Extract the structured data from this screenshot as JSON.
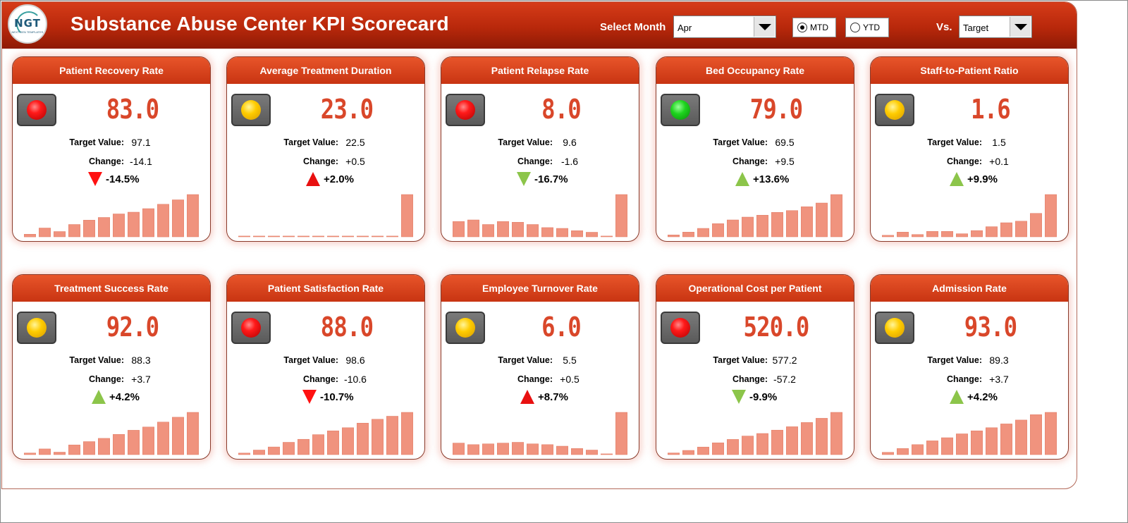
{
  "header": {
    "title": "Substance Abuse Center KPI Scorecard",
    "logo_text": "NGT",
    "logo_sub": "NEXT GEN TEMPLATES",
    "select_month_label": "Select Month",
    "month_value": "Apr",
    "mtd_label": "MTD",
    "ytd_label": "YTD",
    "period_selected": "MTD",
    "vs_label": "Vs.",
    "vs_value": "Target"
  },
  "labels": {
    "target": "Target Value:",
    "change": "Change:"
  },
  "colors": {
    "bar": "#f0937e",
    "bar_stroke": "#e07a63",
    "up_good": "#8cc54a",
    "down_bad": "#ff1111",
    "up_bad": "#e81010",
    "down_good": "#8cc54a"
  },
  "cards": [
    {
      "title": "Patient Recovery Rate",
      "value": "83.0",
      "light": "red",
      "target": "97.1",
      "change": "-14.1",
      "pct": "-14.5%",
      "dir": "down",
      "tri_color": "#ff1111",
      "trend": [
        3,
        10,
        6,
        14,
        19,
        22,
        26,
        28,
        32,
        37,
        42,
        48
      ]
    },
    {
      "title": "Average Treatment Duration",
      "value": "23.0",
      "light": "yellow",
      "target": "22.5",
      "change": "+0.5",
      "pct": "+2.0%",
      "dir": "up",
      "tri_color": "#e81010",
      "trend": [
        1,
        1,
        1,
        1,
        1,
        1,
        1,
        1,
        1,
        1,
        1,
        55
      ]
    },
    {
      "title": "Patient Relapse Rate",
      "value": "8.0",
      "light": "red",
      "target": "9.6",
      "change": "-1.6",
      "pct": "-16.7%",
      "dir": "down",
      "tri_color": "#8cc54a",
      "trend": [
        20,
        22,
        16,
        20,
        19,
        16,
        12,
        11,
        8,
        6,
        1,
        55
      ]
    },
    {
      "title": "Bed Occupancy Rate",
      "value": "79.0",
      "light": "green",
      "target": "69.5",
      "change": "+9.5",
      "pct": "+13.6%",
      "dir": "up",
      "tri_color": "#8cc54a",
      "trend": [
        2,
        5,
        9,
        14,
        18,
        21,
        23,
        26,
        28,
        32,
        36,
        45
      ]
    },
    {
      "title": "Staff-to-Patient Ratio",
      "value": "1.6",
      "light": "yellow",
      "target": "1.5",
      "change": "+0.1",
      "pct": "+9.9%",
      "dir": "up",
      "tri_color": "#8cc54a",
      "trend": [
        2,
        6,
        3,
        7,
        7,
        4,
        8,
        13,
        18,
        20,
        30,
        54
      ]
    },
    {
      "title": "Treatment Success Rate",
      "value": "92.0",
      "light": "yellow",
      "target": "88.3",
      "change": "+3.7",
      "pct": "+4.2%",
      "dir": "up",
      "tri_color": "#8cc54a",
      "trend": [
        2,
        7,
        3,
        12,
        16,
        20,
        25,
        30,
        34,
        40,
        46,
        52
      ]
    },
    {
      "title": "Patient Satisfaction Rate",
      "value": "88.0",
      "light": "red",
      "target": "98.6",
      "change": "-10.6",
      "pct": "-10.7%",
      "dir": "down",
      "tri_color": "#ff1111",
      "trend": [
        2,
        6,
        10,
        16,
        20,
        26,
        31,
        35,
        41,
        46,
        50,
        55
      ]
    },
    {
      "title": "Employee Turnover Rate",
      "value": "6.0",
      "light": "yellow",
      "target": "5.5",
      "change": "+0.5",
      "pct": "+8.7%",
      "dir": "up",
      "tri_color": "#e81010",
      "trend": [
        15,
        13,
        14,
        15,
        16,
        14,
        13,
        11,
        8,
        6,
        1,
        55
      ]
    },
    {
      "title": "Operational Cost per Patient",
      "value": "520.0",
      "light": "red",
      "target": "577.2",
      "change": "-57.2",
      "pct": "-9.9%",
      "dir": "down",
      "tri_color": "#8cc54a",
      "trend": [
        2,
        5,
        9,
        14,
        18,
        22,
        25,
        29,
        33,
        38,
        43,
        50
      ]
    },
    {
      "title": "Admission Rate",
      "value": "93.0",
      "light": "yellow",
      "target": "89.3",
      "change": "+3.7",
      "pct": "+4.2%",
      "dir": "up",
      "tri_color": "#8cc54a",
      "trend": [
        3,
        8,
        13,
        18,
        22,
        27,
        31,
        35,
        40,
        45,
        52,
        55
      ]
    }
  ]
}
